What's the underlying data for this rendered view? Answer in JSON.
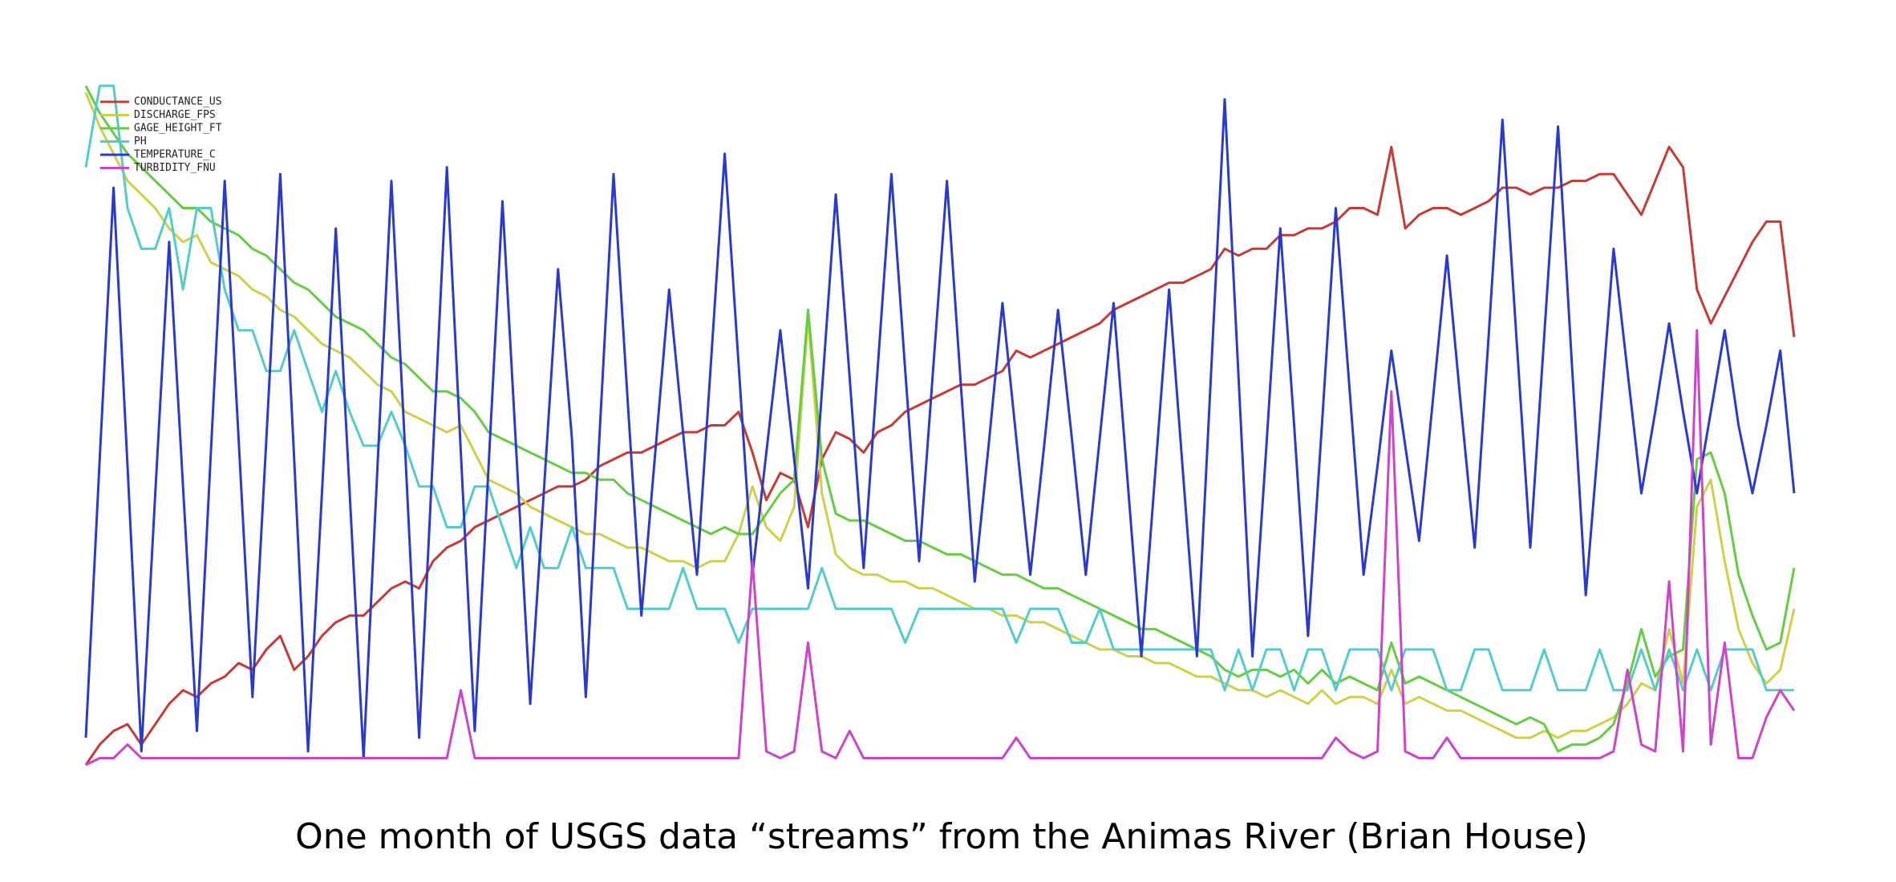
{
  "chart_data": {
    "type": "line",
    "title": "One month of USGS data “streams” from the Animas River (Brian House)",
    "legend": "upper-left",
    "grid": false,
    "xlim": [
      0,
      123
    ],
    "ylim": [
      0,
      1
    ],
    "x": [
      0,
      1,
      2,
      3,
      4,
      5,
      6,
      7,
      8,
      9,
      10,
      11,
      12,
      13,
      14,
      15,
      16,
      17,
      18,
      19,
      20,
      21,
      22,
      23,
      24,
      25,
      26,
      27,
      28,
      29,
      30,
      31,
      32,
      33,
      34,
      35,
      36,
      37,
      38,
      39,
      40,
      41,
      42,
      43,
      44,
      45,
      46,
      47,
      48,
      49,
      50,
      51,
      52,
      53,
      54,
      55,
      56,
      57,
      58,
      59,
      60,
      61,
      62,
      63,
      64,
      65,
      66,
      67,
      68,
      69,
      70,
      71,
      72,
      73,
      74,
      75,
      76,
      77,
      78,
      79,
      80,
      81,
      82,
      83,
      84,
      85,
      86,
      87,
      88,
      89,
      90,
      91,
      92,
      93,
      94,
      95,
      96,
      97,
      98,
      99,
      100,
      101,
      102,
      103,
      104,
      105,
      106,
      107,
      108,
      109,
      110,
      111,
      112,
      113,
      114,
      115,
      116,
      117,
      118,
      119,
      120,
      121,
      122,
      123
    ],
    "series": [
      {
        "name": "CONDUCTANCE_US",
        "color": "#c43c35",
        "values": [
          0.0,
          0.03,
          0.05,
          0.06,
          0.03,
          0.06,
          0.09,
          0.11,
          0.1,
          0.12,
          0.13,
          0.15,
          0.14,
          0.17,
          0.19,
          0.14,
          0.16,
          0.19,
          0.21,
          0.22,
          0.22,
          0.24,
          0.26,
          0.27,
          0.26,
          0.3,
          0.32,
          0.33,
          0.35,
          0.36,
          0.37,
          0.38,
          0.39,
          0.4,
          0.41,
          0.41,
          0.42,
          0.44,
          0.45,
          0.46,
          0.46,
          0.47,
          0.48,
          0.49,
          0.49,
          0.5,
          0.5,
          0.52,
          0.46,
          0.39,
          0.43,
          0.42,
          0.35,
          0.45,
          0.49,
          0.48,
          0.46,
          0.49,
          0.5,
          0.52,
          0.53,
          0.54,
          0.55,
          0.56,
          0.56,
          0.57,
          0.58,
          0.61,
          0.6,
          0.61,
          0.62,
          0.63,
          0.64,
          0.65,
          0.67,
          0.68,
          0.69,
          0.7,
          0.71,
          0.71,
          0.72,
          0.73,
          0.76,
          0.75,
          0.76,
          0.76,
          0.78,
          0.78,
          0.79,
          0.79,
          0.8,
          0.82,
          0.82,
          0.81,
          0.91,
          0.79,
          0.81,
          0.82,
          0.82,
          0.81,
          0.82,
          0.83,
          0.85,
          0.85,
          0.84,
          0.85,
          0.85,
          0.86,
          0.86,
          0.87,
          0.87,
          0.84,
          0.81,
          0.86,
          0.91,
          0.88,
          0.7,
          0.65,
          0.69,
          0.73,
          0.77,
          0.8,
          0.8,
          0.63
        ]
      },
      {
        "name": "DISCHARGE_FPS",
        "color": "#cfcf4c",
        "values": [
          0.99,
          0.94,
          0.9,
          0.86,
          0.84,
          0.82,
          0.79,
          0.77,
          0.78,
          0.74,
          0.73,
          0.72,
          0.7,
          0.69,
          0.67,
          0.66,
          0.64,
          0.62,
          0.61,
          0.6,
          0.58,
          0.56,
          0.55,
          0.52,
          0.51,
          0.5,
          0.49,
          0.5,
          0.46,
          0.42,
          0.41,
          0.4,
          0.38,
          0.37,
          0.36,
          0.35,
          0.34,
          0.34,
          0.33,
          0.32,
          0.32,
          0.31,
          0.3,
          0.3,
          0.29,
          0.3,
          0.3,
          0.34,
          0.41,
          0.35,
          0.33,
          0.38,
          0.66,
          0.4,
          0.31,
          0.29,
          0.28,
          0.28,
          0.27,
          0.27,
          0.26,
          0.26,
          0.25,
          0.24,
          0.23,
          0.23,
          0.22,
          0.22,
          0.21,
          0.21,
          0.2,
          0.19,
          0.18,
          0.17,
          0.17,
          0.16,
          0.16,
          0.15,
          0.15,
          0.14,
          0.13,
          0.13,
          0.12,
          0.11,
          0.11,
          0.1,
          0.11,
          0.1,
          0.09,
          0.11,
          0.09,
          0.1,
          0.1,
          0.09,
          0.14,
          0.09,
          0.1,
          0.09,
          0.08,
          0.08,
          0.07,
          0.06,
          0.05,
          0.04,
          0.04,
          0.05,
          0.04,
          0.05,
          0.05,
          0.06,
          0.07,
          0.09,
          0.12,
          0.11,
          0.2,
          0.12,
          0.38,
          0.42,
          0.3,
          0.2,
          0.15,
          0.12,
          0.14,
          0.23
        ]
      },
      {
        "name": "GAGE_HEIGHT_FT",
        "color": "#66cc44",
        "values": [
          1.0,
          0.96,
          0.93,
          0.9,
          0.88,
          0.86,
          0.84,
          0.82,
          0.82,
          0.8,
          0.79,
          0.78,
          0.76,
          0.75,
          0.73,
          0.71,
          0.7,
          0.68,
          0.66,
          0.65,
          0.64,
          0.62,
          0.6,
          0.59,
          0.57,
          0.55,
          0.55,
          0.54,
          0.52,
          0.49,
          0.48,
          0.47,
          0.46,
          0.45,
          0.44,
          0.43,
          0.43,
          0.42,
          0.42,
          0.4,
          0.39,
          0.38,
          0.37,
          0.36,
          0.35,
          0.34,
          0.35,
          0.34,
          0.34,
          0.37,
          0.4,
          0.42,
          0.67,
          0.45,
          0.37,
          0.36,
          0.36,
          0.35,
          0.34,
          0.33,
          0.33,
          0.32,
          0.31,
          0.31,
          0.3,
          0.29,
          0.28,
          0.28,
          0.27,
          0.26,
          0.26,
          0.25,
          0.24,
          0.23,
          0.22,
          0.21,
          0.2,
          0.2,
          0.19,
          0.18,
          0.17,
          0.16,
          0.14,
          0.13,
          0.14,
          0.14,
          0.13,
          0.14,
          0.12,
          0.14,
          0.12,
          0.13,
          0.12,
          0.11,
          0.18,
          0.12,
          0.13,
          0.12,
          0.11,
          0.1,
          0.09,
          0.08,
          0.07,
          0.06,
          0.07,
          0.06,
          0.02,
          0.03,
          0.03,
          0.04,
          0.06,
          0.12,
          0.2,
          0.13,
          0.16,
          0.17,
          0.45,
          0.46,
          0.4,
          0.28,
          0.22,
          0.17,
          0.18,
          0.29
        ]
      },
      {
        "name": "PH",
        "color": "#55cccc",
        "values": [
          0.88,
          1.0,
          1.0,
          0.82,
          0.76,
          0.76,
          0.82,
          0.7,
          0.82,
          0.82,
          0.7,
          0.64,
          0.64,
          0.58,
          0.58,
          0.64,
          0.58,
          0.52,
          0.58,
          0.52,
          0.47,
          0.47,
          0.52,
          0.47,
          0.41,
          0.41,
          0.35,
          0.35,
          0.41,
          0.41,
          0.35,
          0.29,
          0.35,
          0.29,
          0.29,
          0.35,
          0.29,
          0.29,
          0.29,
          0.23,
          0.23,
          0.23,
          0.23,
          0.29,
          0.23,
          0.23,
          0.23,
          0.18,
          0.23,
          0.23,
          0.23,
          0.23,
          0.23,
          0.29,
          0.23,
          0.23,
          0.23,
          0.23,
          0.23,
          0.18,
          0.23,
          0.23,
          0.23,
          0.23,
          0.23,
          0.23,
          0.23,
          0.18,
          0.23,
          0.23,
          0.23,
          0.18,
          0.18,
          0.23,
          0.17,
          0.17,
          0.17,
          0.17,
          0.17,
          0.17,
          0.17,
          0.17,
          0.11,
          0.17,
          0.11,
          0.17,
          0.17,
          0.11,
          0.17,
          0.17,
          0.11,
          0.17,
          0.17,
          0.17,
          0.11,
          0.17,
          0.17,
          0.17,
          0.11,
          0.11,
          0.17,
          0.17,
          0.11,
          0.11,
          0.11,
          0.17,
          0.11,
          0.11,
          0.11,
          0.17,
          0.11,
          0.11,
          0.17,
          0.11,
          0.17,
          0.11,
          0.17,
          0.11,
          0.17,
          0.17,
          0.17,
          0.11,
          0.11,
          0.11
        ]
      },
      {
        "name": "TEMPERATURE_C",
        "color": "#2a3bcc",
        "values": [
          0.04,
          0.45,
          0.85,
          0.44,
          0.02,
          0.4,
          0.77,
          0.41,
          0.05,
          0.46,
          0.86,
          0.48,
          0.1,
          0.48,
          0.87,
          0.45,
          0.02,
          0.4,
          0.79,
          0.4,
          0.01,
          0.44,
          0.86,
          0.46,
          0.04,
          0.46,
          0.88,
          0.46,
          0.05,
          0.44,
          0.83,
          0.46,
          0.09,
          0.41,
          0.73,
          0.48,
          0.1,
          0.49,
          0.87,
          0.54,
          0.22,
          0.46,
          0.7,
          0.49,
          0.28,
          0.59,
          0.9,
          0.59,
          0.28,
          0.46,
          0.64,
          0.45,
          0.26,
          0.55,
          0.84,
          0.57,
          0.29,
          0.58,
          0.87,
          0.58,
          0.3,
          0.58,
          0.86,
          0.56,
          0.27,
          0.47,
          0.68,
          0.48,
          0.28,
          0.47,
          0.67,
          0.48,
          0.28,
          0.48,
          0.68,
          0.42,
          0.16,
          0.43,
          0.7,
          0.43,
          0.16,
          0.57,
          0.98,
          0.57,
          0.16,
          0.47,
          0.79,
          0.5,
          0.19,
          0.5,
          0.82,
          0.55,
          0.28,
          0.44,
          0.61,
          0.47,
          0.33,
          0.54,
          0.75,
          0.53,
          0.32,
          0.63,
          0.95,
          0.63,
          0.32,
          0.63,
          0.94,
          0.59,
          0.25,
          0.5,
          0.76,
          0.58,
          0.4,
          0.52,
          0.65,
          0.52,
          0.4,
          0.52,
          0.64,
          0.5,
          0.4,
          0.5,
          0.61,
          0.4
        ]
      },
      {
        "name": "TURBIDITY_FNU",
        "color": "#cc44cc",
        "values": [
          0.0,
          0.01,
          0.01,
          0.03,
          0.01,
          0.01,
          0.01,
          0.01,
          0.01,
          0.01,
          0.01,
          0.01,
          0.01,
          0.01,
          0.01,
          0.01,
          0.01,
          0.01,
          0.01,
          0.01,
          0.01,
          0.01,
          0.01,
          0.01,
          0.01,
          0.01,
          0.01,
          0.11,
          0.01,
          0.01,
          0.01,
          0.01,
          0.01,
          0.01,
          0.01,
          0.01,
          0.01,
          0.01,
          0.01,
          0.01,
          0.01,
          0.01,
          0.01,
          0.01,
          0.01,
          0.01,
          0.01,
          0.01,
          0.3,
          0.02,
          0.01,
          0.02,
          0.18,
          0.02,
          0.01,
          0.05,
          0.01,
          0.01,
          0.01,
          0.01,
          0.01,
          0.01,
          0.01,
          0.01,
          0.01,
          0.01,
          0.01,
          0.04,
          0.01,
          0.01,
          0.01,
          0.01,
          0.01,
          0.01,
          0.01,
          0.01,
          0.01,
          0.01,
          0.01,
          0.01,
          0.01,
          0.01,
          0.01,
          0.01,
          0.01,
          0.01,
          0.01,
          0.01,
          0.01,
          0.01,
          0.04,
          0.02,
          0.01,
          0.02,
          0.55,
          0.02,
          0.01,
          0.01,
          0.04,
          0.01,
          0.01,
          0.01,
          0.01,
          0.01,
          0.01,
          0.01,
          0.01,
          0.01,
          0.01,
          0.01,
          0.02,
          0.14,
          0.03,
          0.02,
          0.27,
          0.02,
          0.64,
          0.03,
          0.18,
          0.01,
          0.01,
          0.07,
          0.11,
          0.08
        ]
      }
    ]
  }
}
